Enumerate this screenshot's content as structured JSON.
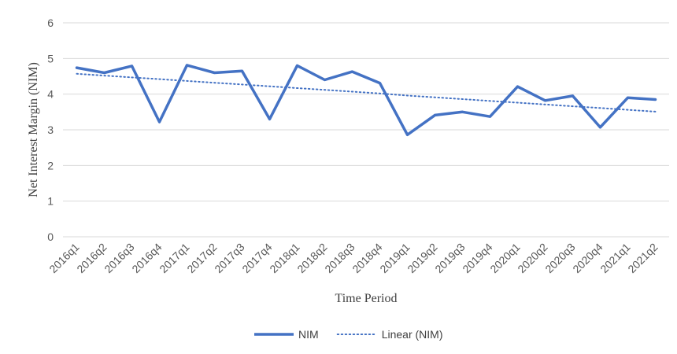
{
  "chart_data": {
    "type": "line",
    "xlabel": "Time Period",
    "ylabel": "Net Interest Margin (NIM)",
    "ylim": [
      0,
      6
    ],
    "yticks": [
      0,
      1,
      2,
      3,
      4,
      5,
      6
    ],
    "grid": true,
    "legend_position": "bottom",
    "categories": [
      "2016q1",
      "2016q2",
      "2016q3",
      "2016q4",
      "2017q1",
      "2017q2",
      "2017q3",
      "2017q4",
      "2018q1",
      "2018q2",
      "2018q3",
      "2018q4",
      "2019q1",
      "2019q2",
      "2019q3",
      "2019q4",
      "2020q1",
      "2020q2",
      "2020q3",
      "2020q4",
      "2021q1",
      "2021q2"
    ],
    "series": [
      {
        "name": "NIM",
        "style": "solid",
        "color": "#4472c4",
        "values": [
          4.74,
          4.6,
          4.79,
          3.22,
          4.81,
          4.6,
          4.65,
          3.3,
          4.8,
          4.4,
          4.63,
          4.31,
          2.86,
          3.41,
          3.5,
          3.37,
          4.21,
          3.82,
          3.95,
          3.07,
          3.9,
          3.85
        ]
      },
      {
        "name": "Linear (NIM)",
        "style": "dotted",
        "color": "#4472c4",
        "values": [
          4.57,
          4.52,
          4.47,
          4.42,
          4.37,
          4.32,
          4.27,
          4.22,
          4.17,
          4.12,
          4.07,
          4.02,
          3.96,
          3.91,
          3.86,
          3.81,
          3.76,
          3.71,
          3.66,
          3.61,
          3.56,
          3.51
        ]
      }
    ]
  }
}
